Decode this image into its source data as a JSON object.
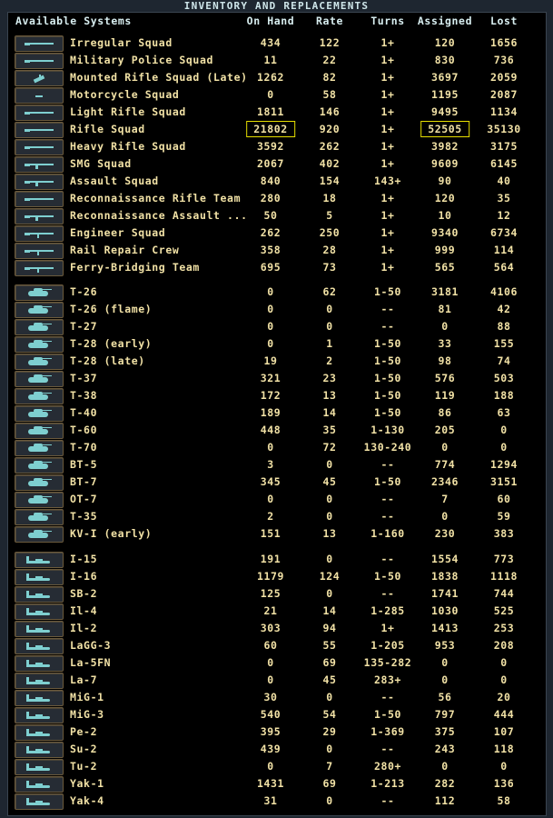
{
  "window": {
    "title": "INVENTORY AND REPLACEMENTS"
  },
  "columns": [
    "Available Systems",
    "On Hand",
    "Rate",
    "Turns",
    "Assigned",
    "Lost"
  ],
  "highlight_color": "#e8e000",
  "sections": [
    {
      "icon": "rifle-icon",
      "rows": [
        {
          "name": "Irregular Squad",
          "on_hand": "434",
          "rate": "122",
          "turns": "1+",
          "assigned": "120",
          "lost": "1656"
        },
        {
          "name": "Military Police Squad",
          "on_hand": "11",
          "rate": "22",
          "turns": "1+",
          "assigned": "830",
          "lost": "736"
        },
        {
          "name": "Mounted Rifle Squad (Late)",
          "on_hand": "1262",
          "rate": "82",
          "turns": "1+",
          "assigned": "3697",
          "lost": "2059",
          "icon": "cavalry-icon"
        },
        {
          "name": "Motorcycle Squad",
          "on_hand": "0",
          "rate": "58",
          "turns": "1+",
          "assigned": "1195",
          "lost": "2087",
          "icon": "motorcycle-icon"
        },
        {
          "name": "Light Rifle Squad",
          "on_hand": "1811",
          "rate": "146",
          "turns": "1+",
          "assigned": "9495",
          "lost": "1134"
        },
        {
          "name": "Rifle Squad",
          "on_hand": "21802",
          "rate": "920",
          "turns": "1+",
          "assigned": "52505",
          "lost": "35130",
          "highlighted": [
            "on_hand",
            "assigned"
          ]
        },
        {
          "name": "Heavy Rifle Squad",
          "on_hand": "3592",
          "rate": "262",
          "turns": "1+",
          "assigned": "3982",
          "lost": "3175"
        },
        {
          "name": "SMG Squad",
          "on_hand": "2067",
          "rate": "402",
          "turns": "1+",
          "assigned": "9609",
          "lost": "6145",
          "icon": "smg-icon"
        },
        {
          "name": "Assault Squad",
          "on_hand": "840",
          "rate": "154",
          "turns": "143+",
          "assigned": "90",
          "lost": "40",
          "icon": "assault-rifle-icon"
        },
        {
          "name": "Reconnaissance Rifle Team",
          "on_hand": "280",
          "rate": "18",
          "turns": "1+",
          "assigned": "120",
          "lost": "35"
        },
        {
          "name": "Reconnaissance Assault ...",
          "on_hand": "50",
          "rate": "5",
          "turns": "1+",
          "assigned": "10",
          "lost": "12",
          "icon": "assault-rifle-icon"
        },
        {
          "name": "Engineer Squad",
          "on_hand": "262",
          "rate": "250",
          "turns": "1+",
          "assigned": "9340",
          "lost": "6734",
          "icon": "engineer-icon"
        },
        {
          "name": "Rail Repair Crew",
          "on_hand": "358",
          "rate": "28",
          "turns": "1+",
          "assigned": "999",
          "lost": "114",
          "icon": "engineer-icon"
        },
        {
          "name": "Ferry-Bridging Team",
          "on_hand": "695",
          "rate": "73",
          "turns": "1+",
          "assigned": "565",
          "lost": "564",
          "icon": "engineer-icon"
        }
      ]
    },
    {
      "icon": "tank-icon",
      "rows": [
        {
          "name": "T-26",
          "on_hand": "0",
          "rate": "62",
          "turns": "1-50",
          "assigned": "3181",
          "lost": "4106"
        },
        {
          "name": "T-26 (flame)",
          "on_hand": "0",
          "rate": "0",
          "turns": "--",
          "assigned": "81",
          "lost": "42"
        },
        {
          "name": "T-27",
          "on_hand": "0",
          "rate": "0",
          "turns": "--",
          "assigned": "0",
          "lost": "88"
        },
        {
          "name": "T-28 (early)",
          "on_hand": "0",
          "rate": "1",
          "turns": "1-50",
          "assigned": "33",
          "lost": "155"
        },
        {
          "name": "T-28 (late)",
          "on_hand": "19",
          "rate": "2",
          "turns": "1-50",
          "assigned": "98",
          "lost": "74"
        },
        {
          "name": "T-37",
          "on_hand": "321",
          "rate": "23",
          "turns": "1-50",
          "assigned": "576",
          "lost": "503"
        },
        {
          "name": "T-38",
          "on_hand": "172",
          "rate": "13",
          "turns": "1-50",
          "assigned": "119",
          "lost": "188"
        },
        {
          "name": "T-40",
          "on_hand": "189",
          "rate": "14",
          "turns": "1-50",
          "assigned": "86",
          "lost": "63"
        },
        {
          "name": "T-60",
          "on_hand": "448",
          "rate": "35",
          "turns": "1-130",
          "assigned": "205",
          "lost": "0"
        },
        {
          "name": "T-70",
          "on_hand": "0",
          "rate": "72",
          "turns": "130-240",
          "assigned": "0",
          "lost": "0"
        },
        {
          "name": "BT-5",
          "on_hand": "3",
          "rate": "0",
          "turns": "--",
          "assigned": "774",
          "lost": "1294"
        },
        {
          "name": "BT-7",
          "on_hand": "345",
          "rate": "45",
          "turns": "1-50",
          "assigned": "2346",
          "lost": "3151"
        },
        {
          "name": "OT-7",
          "on_hand": "0",
          "rate": "0",
          "turns": "--",
          "assigned": "7",
          "lost": "60"
        },
        {
          "name": "T-35",
          "on_hand": "2",
          "rate": "0",
          "turns": "--",
          "assigned": "0",
          "lost": "59"
        },
        {
          "name": "KV-I (early)",
          "on_hand": "151",
          "rate": "13",
          "turns": "1-160",
          "assigned": "230",
          "lost": "383"
        }
      ]
    },
    {
      "icon": "aircraft-icon",
      "rows": [
        {
          "name": "I-15",
          "on_hand": "191",
          "rate": "0",
          "turns": "--",
          "assigned": "1554",
          "lost": "773"
        },
        {
          "name": "I-16",
          "on_hand": "1179",
          "rate": "124",
          "turns": "1-50",
          "assigned": "1838",
          "lost": "1118"
        },
        {
          "name": "SB-2",
          "on_hand": "125",
          "rate": "0",
          "turns": "--",
          "assigned": "1741",
          "lost": "744"
        },
        {
          "name": "Il-4",
          "on_hand": "21",
          "rate": "14",
          "turns": "1-285",
          "assigned": "1030",
          "lost": "525"
        },
        {
          "name": "Il-2",
          "on_hand": "303",
          "rate": "94",
          "turns": "1+",
          "assigned": "1413",
          "lost": "253"
        },
        {
          "name": "LaGG-3",
          "on_hand": "60",
          "rate": "55",
          "turns": "1-205",
          "assigned": "953",
          "lost": "208"
        },
        {
          "name": "La-5FN",
          "on_hand": "0",
          "rate": "69",
          "turns": "135-282",
          "assigned": "0",
          "lost": "0"
        },
        {
          "name": "La-7",
          "on_hand": "0",
          "rate": "45",
          "turns": "283+",
          "assigned": "0",
          "lost": "0"
        },
        {
          "name": "MiG-1",
          "on_hand": "30",
          "rate": "0",
          "turns": "--",
          "assigned": "56",
          "lost": "20"
        },
        {
          "name": "MiG-3",
          "on_hand": "540",
          "rate": "54",
          "turns": "1-50",
          "assigned": "797",
          "lost": "444"
        },
        {
          "name": "Pe-2",
          "on_hand": "395",
          "rate": "29",
          "turns": "1-369",
          "assigned": "375",
          "lost": "107"
        },
        {
          "name": "Su-2",
          "on_hand": "439",
          "rate": "0",
          "turns": "--",
          "assigned": "243",
          "lost": "118"
        },
        {
          "name": "Tu-2",
          "on_hand": "0",
          "rate": "7",
          "turns": "280+",
          "assigned": "0",
          "lost": "0"
        },
        {
          "name": "Yak-1",
          "on_hand": "1431",
          "rate": "69",
          "turns": "1-213",
          "assigned": "282",
          "lost": "136"
        },
        {
          "name": "Yak-4",
          "on_hand": "31",
          "rate": "0",
          "turns": "--",
          "assigned": "112",
          "lost": "58"
        }
      ]
    }
  ]
}
